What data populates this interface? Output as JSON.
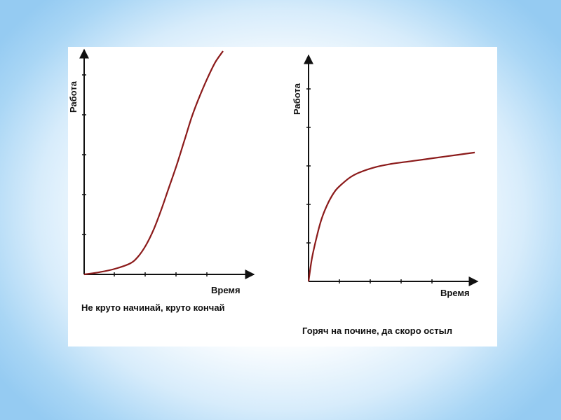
{
  "chart_data": [
    {
      "type": "line",
      "title": "",
      "caption": "Не круто начинай, круто кончай",
      "xlabel": "Время",
      "ylabel": "Работа",
      "xlim": [
        0,
        1
      ],
      "ylim": [
        0,
        1
      ],
      "grid": false,
      "x_ticks": 5,
      "y_ticks": 6,
      "series": [
        {
          "color": "#8b1a1a",
          "x": [
            0,
            0.1,
            0.2,
            0.3,
            0.35,
            0.4,
            0.45,
            0.5,
            0.55,
            0.6,
            0.65,
            0.7,
            0.75,
            0.8,
            0.85,
            0.9
          ],
          "y": [
            0,
            0.01,
            0.025,
            0.05,
            0.08,
            0.13,
            0.2,
            0.29,
            0.39,
            0.49,
            0.6,
            0.71,
            0.8,
            0.88,
            0.95,
            1.0
          ]
        }
      ]
    },
    {
      "type": "line",
      "title": "",
      "caption": "Горяч на почине, да скоро остыл",
      "xlabel": "Время",
      "ylabel": "Работа",
      "xlim": [
        0,
        1
      ],
      "ylim": [
        0,
        1
      ],
      "grid": false,
      "x_ticks": 5,
      "y_ticks": 6,
      "series": [
        {
          "color": "#8b1a1a",
          "x": [
            0,
            0.02,
            0.05,
            0.08,
            0.12,
            0.16,
            0.2,
            0.25,
            0.3,
            0.4,
            0.5,
            0.6,
            0.7,
            0.8,
            0.9,
            1.0
          ],
          "y": [
            0,
            0.1,
            0.2,
            0.28,
            0.35,
            0.4,
            0.43,
            0.46,
            0.48,
            0.505,
            0.52,
            0.53,
            0.54,
            0.55,
            0.56,
            0.57
          ]
        }
      ]
    }
  ]
}
